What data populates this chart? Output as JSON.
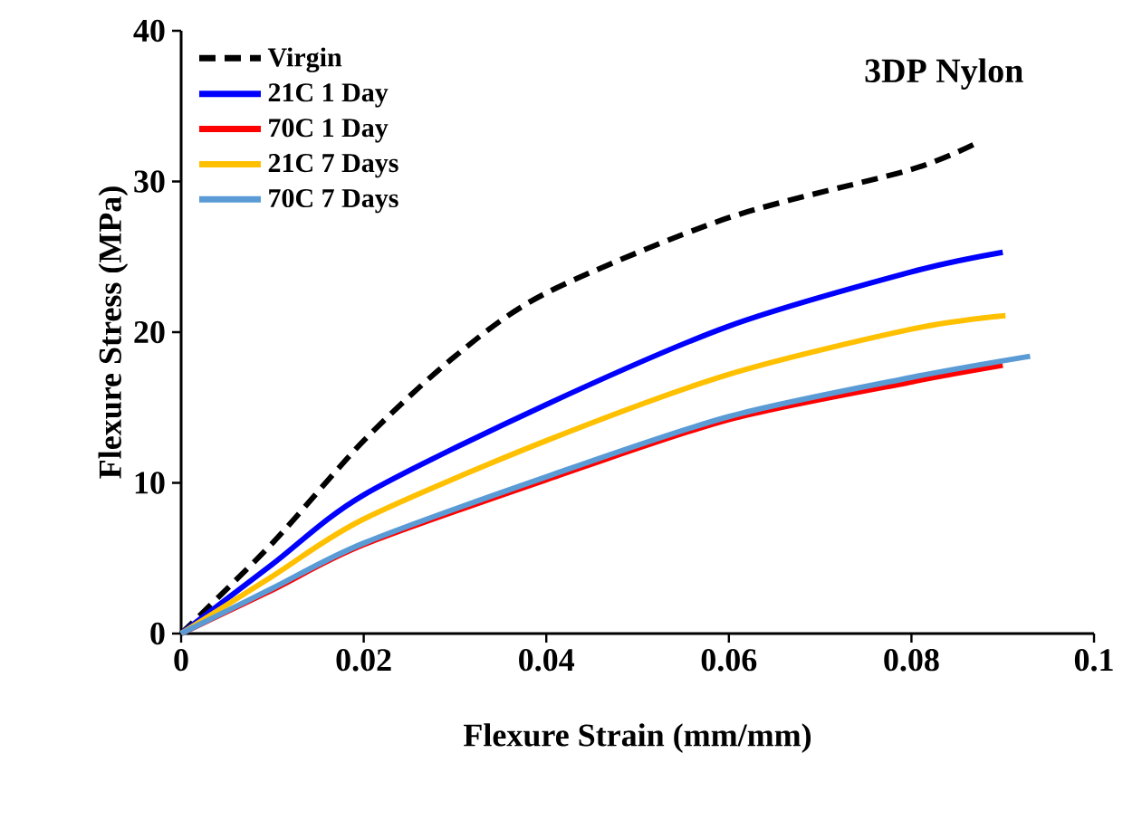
{
  "chart_data": {
    "type": "line",
    "xlabel": "Flexure Strain (mm/mm)",
    "ylabel": "Flexure Stress (MPa)",
    "xlim": [
      0,
      0.1
    ],
    "ylim": [
      0,
      40
    ],
    "xticks": [
      0,
      0.02,
      0.04,
      0.06,
      0.08,
      0.1
    ],
    "yticks": [
      0,
      10,
      20,
      30,
      40
    ],
    "legend": "top left",
    "annotations": [
      "3DP Nylon"
    ],
    "series": [
      {
        "name": "Virgin",
        "color": "#000000",
        "line_style": "dashed",
        "x": [
          0,
          0.01,
          0.02,
          0.03,
          0.04,
          0.06,
          0.08,
          0.0873
        ],
        "values": [
          0,
          6.0,
          12.8,
          18.4,
          22.6,
          27.6,
          30.8,
          32.6
        ]
      },
      {
        "name": "21C 1 Day",
        "color": "#0000ff",
        "line_style": "solid",
        "x": [
          0,
          0.01,
          0.02,
          0.04,
          0.06,
          0.08,
          0.09
        ],
        "values": [
          0,
          4.6,
          9.2,
          15.2,
          20.4,
          24.0,
          25.3
        ]
      },
      {
        "name": "70C 1 Day",
        "color": "#ff0000",
        "line_style": "solid",
        "x": [
          0,
          0.01,
          0.02,
          0.04,
          0.06,
          0.08,
          0.09
        ],
        "values": [
          0,
          2.9,
          5.9,
          10.2,
          14.2,
          16.7,
          17.8
        ]
      },
      {
        "name": "21C 7 Days",
        "color": "#ffc000",
        "line_style": "solid",
        "x": [
          0,
          0.01,
          0.02,
          0.04,
          0.06,
          0.08,
          0.0903
        ],
        "values": [
          0,
          3.8,
          7.6,
          12.8,
          17.2,
          20.2,
          21.1
        ]
      },
      {
        "name": "70C 7 Days",
        "color": "#5b9bd5",
        "line_style": "solid",
        "x": [
          0,
          0.01,
          0.02,
          0.04,
          0.06,
          0.08,
          0.093
        ],
        "values": [
          0,
          3.0,
          6.0,
          10.4,
          14.4,
          17.0,
          18.4
        ]
      }
    ]
  }
}
